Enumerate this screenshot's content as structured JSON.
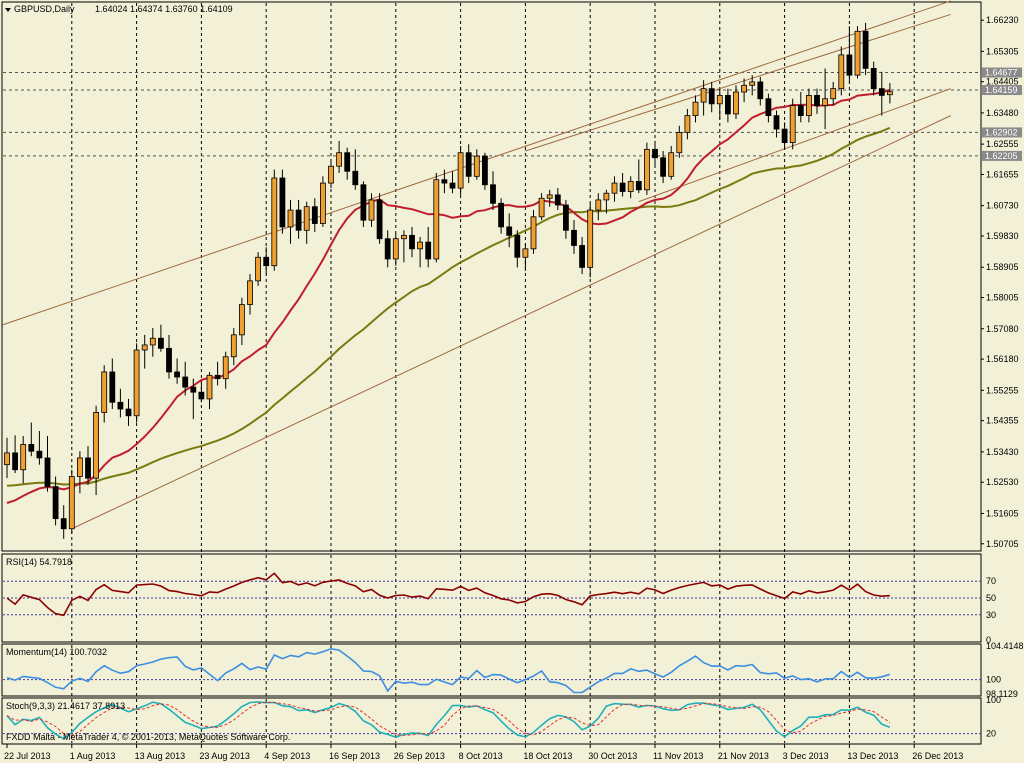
{
  "chart_data": {
    "type": "candlestick",
    "symbol_label": "GBPUSD,Daily",
    "ohlc_label": "1.64024 1.64374 1.63760 1.64109",
    "price_axis_ticks": [
      "1.66230",
      "1.65305",
      "1.64405",
      "1.63480",
      "1.62555",
      "1.61655",
      "1.60730",
      "1.59830",
      "1.58905",
      "1.58005",
      "1.57080",
      "1.56180",
      "1.55255",
      "1.54355",
      "1.53430",
      "1.52530",
      "1.51605",
      "1.50705"
    ],
    "price_range": [
      1.5055,
      1.6668
    ],
    "price_tags": [
      {
        "label": "1.64677",
        "value": 1.64677
      },
      {
        "label": "1.64159",
        "value": 1.64159
      },
      {
        "label": "1.62902",
        "value": 1.62902
      },
      {
        "label": "1.62205",
        "value": 1.62205
      }
    ],
    "colors": {
      "background": "#f2f1d8",
      "bull_candle": "#f0a030",
      "bear_candle": "#000000",
      "ma_fast": "#c01e2e",
      "ma_slow": "#7a7a10",
      "trend_channel": "#a06a40",
      "rsi_line": "#8b0000",
      "momentum_line": "#3c8fe0",
      "stoch_main": "#20b0b8",
      "stoch_signal": "#e03030",
      "tag_bg": "#8a8a8a"
    },
    "candles": [
      {
        "t": "1",
        "o": 1.5305,
        "h": 1.5385,
        "l": 1.5265,
        "c": 1.534
      },
      {
        "t": "2",
        "o": 1.534,
        "h": 1.5392,
        "l": 1.528,
        "c": 1.529
      },
      {
        "t": "3",
        "o": 1.529,
        "h": 1.539,
        "l": 1.525,
        "c": 1.5365
      },
      {
        "t": "4",
        "o": 1.5365,
        "h": 1.543,
        "l": 1.533,
        "c": 1.5345
      },
      {
        "t": "5",
        "o": 1.5345,
        "h": 1.5405,
        "l": 1.5305,
        "c": 1.5325
      },
      {
        "t": "6",
        "o": 1.5325,
        "h": 1.539,
        "l": 1.5225,
        "c": 1.524
      },
      {
        "t": "7",
        "o": 1.524,
        "h": 1.527,
        "l": 1.5125,
        "c": 1.5145
      },
      {
        "t": "8",
        "o": 1.5145,
        "h": 1.5185,
        "l": 1.5085,
        "c": 1.5115
      },
      {
        "t": "9",
        "o": 1.5115,
        "h": 1.529,
        "l": 1.51,
        "c": 1.527
      },
      {
        "t": "10",
        "o": 1.527,
        "h": 1.5345,
        "l": 1.522,
        "c": 1.5325
      },
      {
        "t": "11",
        "o": 1.5325,
        "h": 1.536,
        "l": 1.5245,
        "c": 1.5265
      },
      {
        "t": "12",
        "o": 1.5265,
        "h": 1.548,
        "l": 1.5215,
        "c": 1.546
      },
      {
        "t": "13",
        "o": 1.546,
        "h": 1.56,
        "l": 1.543,
        "c": 1.558
      },
      {
        "t": "14",
        "o": 1.558,
        "h": 1.562,
        "l": 1.547,
        "c": 1.549
      },
      {
        "t": "15",
        "o": 1.549,
        "h": 1.553,
        "l": 1.5445,
        "c": 1.547
      },
      {
        "t": "16",
        "o": 1.547,
        "h": 1.55,
        "l": 1.542,
        "c": 1.545
      },
      {
        "t": "17",
        "o": 1.545,
        "h": 1.5665,
        "l": 1.543,
        "c": 1.5645
      },
      {
        "t": "18",
        "o": 1.5645,
        "h": 1.569,
        "l": 1.559,
        "c": 1.566
      },
      {
        "t": "19",
        "o": 1.566,
        "h": 1.571,
        "l": 1.5625,
        "c": 1.568
      },
      {
        "t": "20",
        "o": 1.568,
        "h": 1.572,
        "l": 1.564,
        "c": 1.565
      },
      {
        "t": "21",
        "o": 1.565,
        "h": 1.569,
        "l": 1.556,
        "c": 1.558
      },
      {
        "t": "22",
        "o": 1.558,
        "h": 1.562,
        "l": 1.5545,
        "c": 1.5565
      },
      {
        "t": "23",
        "o": 1.5565,
        "h": 1.561,
        "l": 1.551,
        "c": 1.5535
      },
      {
        "t": "24",
        "o": 1.5535,
        "h": 1.556,
        "l": 1.544,
        "c": 1.552
      },
      {
        "t": "25",
        "o": 1.552,
        "h": 1.555,
        "l": 1.549,
        "c": 1.55
      },
      {
        "t": "26",
        "o": 1.55,
        "h": 1.558,
        "l": 1.547,
        "c": 1.557
      },
      {
        "t": "27",
        "o": 1.557,
        "h": 1.561,
        "l": 1.554,
        "c": 1.556
      },
      {
        "t": "28",
        "o": 1.556,
        "h": 1.564,
        "l": 1.553,
        "c": 1.5625
      },
      {
        "t": "29",
        "o": 1.5625,
        "h": 1.571,
        "l": 1.56,
        "c": 1.569
      },
      {
        "t": "30",
        "o": 1.569,
        "h": 1.58,
        "l": 1.566,
        "c": 1.578
      },
      {
        "t": "31",
        "o": 1.578,
        "h": 1.587,
        "l": 1.575,
        "c": 1.585
      },
      {
        "t": "32",
        "o": 1.585,
        "h": 1.5935,
        "l": 1.5835,
        "c": 1.592
      },
      {
        "t": "33",
        "o": 1.592,
        "h": 1.595,
        "l": 1.587,
        "c": 1.5895
      },
      {
        "t": "34",
        "o": 1.5895,
        "h": 1.618,
        "l": 1.588,
        "c": 1.6155
      },
      {
        "t": "35",
        "o": 1.6155,
        "h": 1.618,
        "l": 1.599,
        "c": 1.601
      },
      {
        "t": "36",
        "o": 1.601,
        "h": 1.609,
        "l": 1.596,
        "c": 1.606
      },
      {
        "t": "37",
        "o": 1.606,
        "h": 1.609,
        "l": 1.5975,
        "c": 1.6
      },
      {
        "t": "38",
        "o": 1.6,
        "h": 1.6085,
        "l": 1.596,
        "c": 1.607
      },
      {
        "t": "39",
        "o": 1.607,
        "h": 1.6095,
        "l": 1.5995,
        "c": 1.602
      },
      {
        "t": "40",
        "o": 1.602,
        "h": 1.616,
        "l": 1.601,
        "c": 1.614
      },
      {
        "t": "41",
        "o": 1.614,
        "h": 1.6205,
        "l": 1.6125,
        "c": 1.619
      },
      {
        "t": "42",
        "o": 1.619,
        "h": 1.6265,
        "l": 1.617,
        "c": 1.623
      },
      {
        "t": "43",
        "o": 1.623,
        "h": 1.6245,
        "l": 1.615,
        "c": 1.6175
      },
      {
        "t": "44",
        "o": 1.6175,
        "h": 1.624,
        "l": 1.612,
        "c": 1.6135
      },
      {
        "t": "45",
        "o": 1.6135,
        "h": 1.6145,
        "l": 1.601,
        "c": 1.603
      },
      {
        "t": "46",
        "o": 1.603,
        "h": 1.611,
        "l": 1.601,
        "c": 1.609
      },
      {
        "t": "47",
        "o": 1.609,
        "h": 1.611,
        "l": 1.596,
        "c": 1.5975
      },
      {
        "t": "48",
        "o": 1.5975,
        "h": 1.6,
        "l": 1.589,
        "c": 1.5915
      },
      {
        "t": "49",
        "o": 1.5915,
        "h": 1.599,
        "l": 1.5895,
        "c": 1.5975
      },
      {
        "t": "50",
        "o": 1.5975,
        "h": 1.6,
        "l": 1.5905,
        "c": 1.5985
      },
      {
        "t": "51",
        "o": 1.5985,
        "h": 1.601,
        "l": 1.592,
        "c": 1.5945
      },
      {
        "t": "52",
        "o": 1.5945,
        "h": 1.598,
        "l": 1.589,
        "c": 1.5965
      },
      {
        "t": "53",
        "o": 1.5965,
        "h": 1.601,
        "l": 1.589,
        "c": 1.5915
      },
      {
        "t": "54",
        "o": 1.5915,
        "h": 1.617,
        "l": 1.5905,
        "c": 1.615
      },
      {
        "t": "55",
        "o": 1.615,
        "h": 1.618,
        "l": 1.611,
        "c": 1.614
      },
      {
        "t": "56",
        "o": 1.614,
        "h": 1.6175,
        "l": 1.611,
        "c": 1.6125
      },
      {
        "t": "57",
        "o": 1.6125,
        "h": 1.625,
        "l": 1.6105,
        "c": 1.623
      },
      {
        "t": "58",
        "o": 1.623,
        "h": 1.6255,
        "l": 1.614,
        "c": 1.616
      },
      {
        "t": "59",
        "o": 1.616,
        "h": 1.624,
        "l": 1.615,
        "c": 1.622
      },
      {
        "t": "60",
        "o": 1.622,
        "h": 1.623,
        "l": 1.612,
        "c": 1.6135
      },
      {
        "t": "61",
        "o": 1.6135,
        "h": 1.6175,
        "l": 1.606,
        "c": 1.608
      },
      {
        "t": "62",
        "o": 1.608,
        "h": 1.6095,
        "l": 1.599,
        "c": 1.601
      },
      {
        "t": "63",
        "o": 1.601,
        "h": 1.605,
        "l": 1.595,
        "c": 1.5985
      },
      {
        "t": "64",
        "o": 1.5985,
        "h": 1.6,
        "l": 1.589,
        "c": 1.592
      },
      {
        "t": "65",
        "o": 1.592,
        "h": 1.596,
        "l": 1.588,
        "c": 1.5945
      },
      {
        "t": "66",
        "o": 1.5945,
        "h": 1.606,
        "l": 1.593,
        "c": 1.604
      },
      {
        "t": "67",
        "o": 1.604,
        "h": 1.611,
        "l": 1.603,
        "c": 1.6095
      },
      {
        "t": "68",
        "o": 1.6095,
        "h": 1.612,
        "l": 1.607,
        "c": 1.6105
      },
      {
        "t": "69",
        "o": 1.6105,
        "h": 1.6125,
        "l": 1.606,
        "c": 1.6075
      },
      {
        "t": "70",
        "o": 1.6075,
        "h": 1.609,
        "l": 1.5975,
        "c": 1.6
      },
      {
        "t": "71",
        "o": 1.6,
        "h": 1.603,
        "l": 1.593,
        "c": 1.5955
      },
      {
        "t": "72",
        "o": 1.5955,
        "h": 1.598,
        "l": 1.587,
        "c": 1.589
      },
      {
        "t": "73",
        "o": 1.589,
        "h": 1.608,
        "l": 1.586,
        "c": 1.606
      },
      {
        "t": "74",
        "o": 1.606,
        "h": 1.611,
        "l": 1.603,
        "c": 1.609
      },
      {
        "t": "75",
        "o": 1.609,
        "h": 1.612,
        "l": 1.605,
        "c": 1.611
      },
      {
        "t": "76",
        "o": 1.611,
        "h": 1.616,
        "l": 1.6085,
        "c": 1.614
      },
      {
        "t": "77",
        "o": 1.614,
        "h": 1.617,
        "l": 1.61,
        "c": 1.6115
      },
      {
        "t": "78",
        "o": 1.6115,
        "h": 1.616,
        "l": 1.6095,
        "c": 1.6145
      },
      {
        "t": "79",
        "o": 1.6145,
        "h": 1.621,
        "l": 1.611,
        "c": 1.612
      },
      {
        "t": "80",
        "o": 1.612,
        "h": 1.626,
        "l": 1.6105,
        "c": 1.624
      },
      {
        "t": "81",
        "o": 1.624,
        "h": 1.6265,
        "l": 1.619,
        "c": 1.6215
      },
      {
        "t": "82",
        "o": 1.6215,
        "h": 1.6235,
        "l": 1.614,
        "c": 1.616
      },
      {
        "t": "83",
        "o": 1.616,
        "h": 1.625,
        "l": 1.615,
        "c": 1.623
      },
      {
        "t": "84",
        "o": 1.623,
        "h": 1.631,
        "l": 1.6215,
        "c": 1.629
      },
      {
        "t": "85",
        "o": 1.629,
        "h": 1.636,
        "l": 1.627,
        "c": 1.634
      },
      {
        "t": "86",
        "o": 1.634,
        "h": 1.64,
        "l": 1.632,
        "c": 1.638
      },
      {
        "t": "87",
        "o": 1.638,
        "h": 1.6445,
        "l": 1.634,
        "c": 1.642
      },
      {
        "t": "88",
        "o": 1.642,
        "h": 1.644,
        "l": 1.635,
        "c": 1.6375
      },
      {
        "t": "89",
        "o": 1.6375,
        "h": 1.642,
        "l": 1.633,
        "c": 1.64
      },
      {
        "t": "90",
        "o": 1.64,
        "h": 1.642,
        "l": 1.632,
        "c": 1.6345
      },
      {
        "t": "91",
        "o": 1.6345,
        "h": 1.643,
        "l": 1.633,
        "c": 1.641
      },
      {
        "t": "92",
        "o": 1.641,
        "h": 1.645,
        "l": 1.638,
        "c": 1.643
      },
      {
        "t": "93",
        "o": 1.643,
        "h": 1.646,
        "l": 1.64,
        "c": 1.644
      },
      {
        "t": "94",
        "o": 1.644,
        "h": 1.6455,
        "l": 1.637,
        "c": 1.639
      },
      {
        "t": "95",
        "o": 1.639,
        "h": 1.6405,
        "l": 1.632,
        "c": 1.634
      },
      {
        "t": "96",
        "o": 1.634,
        "h": 1.6355,
        "l": 1.6275,
        "c": 1.63
      },
      {
        "t": "97",
        "o": 1.63,
        "h": 1.632,
        "l": 1.624,
        "c": 1.626
      },
      {
        "t": "98",
        "o": 1.626,
        "h": 1.639,
        "l": 1.624,
        "c": 1.637
      },
      {
        "t": "99",
        "o": 1.637,
        "h": 1.641,
        "l": 1.632,
        "c": 1.634
      },
      {
        "t": "100",
        "o": 1.634,
        "h": 1.642,
        "l": 1.632,
        "c": 1.64
      },
      {
        "t": "101",
        "o": 1.64,
        "h": 1.642,
        "l": 1.6345,
        "c": 1.637
      },
      {
        "t": "102",
        "o": 1.637,
        "h": 1.648,
        "l": 1.63,
        "c": 1.639
      },
      {
        "t": "103",
        "o": 1.639,
        "h": 1.644,
        "l": 1.637,
        "c": 1.642
      },
      {
        "t": "104",
        "o": 1.642,
        "h": 1.6545,
        "l": 1.64,
        "c": 1.652
      },
      {
        "t": "105",
        "o": 1.652,
        "h": 1.6605,
        "l": 1.644,
        "c": 1.646
      },
      {
        "t": "106",
        "o": 1.646,
        "h": 1.6605,
        "l": 1.645,
        "c": 1.659
      },
      {
        "t": "107",
        "o": 1.659,
        "h": 1.6615,
        "l": 1.646,
        "c": 1.648
      },
      {
        "t": "108",
        "o": 1.648,
        "h": 1.65,
        "l": 1.64,
        "c": 1.642
      },
      {
        "t": "109",
        "o": 1.642,
        "h": 1.647,
        "l": 1.634,
        "c": 1.64
      },
      {
        "t": "110",
        "o": 1.6402,
        "h": 1.6437,
        "l": 1.6376,
        "c": 1.6411
      }
    ],
    "time_axis": [
      {
        "label": "22 Jul 2013",
        "i": 0
      },
      {
        "label": "1 Aug 2013",
        "i": 8
      },
      {
        "label": "13 Aug 2013",
        "i": 16
      },
      {
        "label": "23 Aug 2013",
        "i": 24
      },
      {
        "label": "4 Sep 2013",
        "i": 32
      },
      {
        "label": "16 Sep 2013",
        "i": 40
      },
      {
        "label": "26 Sep 2013",
        "i": 48
      },
      {
        "label": "8 Oct 2013",
        "i": 56
      },
      {
        "label": "18 Oct 2013",
        "i": 64
      },
      {
        "label": "30 Oct 2013",
        "i": 72
      },
      {
        "label": "11 Nov 2013",
        "i": 80
      },
      {
        "label": "21 Nov 2013",
        "i": 88
      },
      {
        "label": "3 Dec 2013",
        "i": 96
      },
      {
        "label": "13 Dec 2013",
        "i": 104
      },
      {
        "label": "26 Dec 2013",
        "i": 112
      }
    ],
    "indicators": {
      "rsi": {
        "label": "RSI(14) 54.7918",
        "levels": [
          "70",
          "50",
          "30",
          "0"
        ],
        "range": [
          0,
          100
        ]
      },
      "momentum": {
        "label": "Momentum(14) 100.7032",
        "levels": [
          "104.4148",
          "100",
          "98.1129"
        ],
        "range": [
          98.1129,
          104.4148
        ]
      },
      "stoch": {
        "label": "Stoch(9,3,3) 21.4617 37.8913",
        "levels": [
          "100",
          "20"
        ],
        "range": [
          0,
          100
        ]
      }
    },
    "footer_text": "FXDD Malta - MetaTrader 4, © 2001-2013, MetaQuotes Software Corp."
  }
}
